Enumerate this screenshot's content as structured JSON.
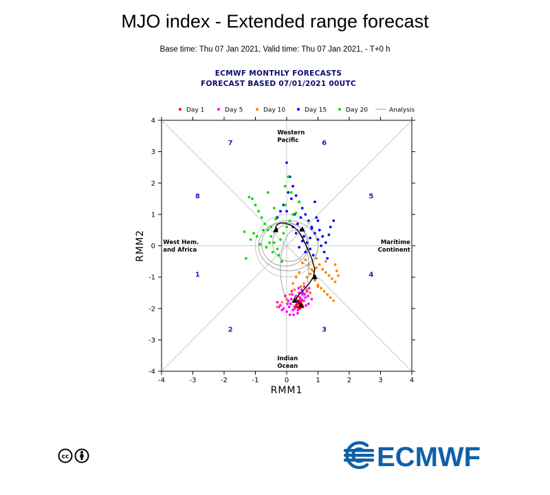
{
  "page": {
    "title": "MJO index - Extended range forecast",
    "subtitle": "Base time: Thu 07 Jan 2021, Valid time: Thu 07 Jan 2021, - T+0 h",
    "header_line1": "ECMWF MONTHLY FORECASTS",
    "header_line2": "FORECAST  BASED 07/01/2021 00UTC",
    "logo_text": "ECMWF",
    "license_icon": "cc-by-icon"
  },
  "colors": {
    "day1": "#ff0000",
    "day5": "#ff00ff",
    "day10": "#ff8000",
    "day15": "#0000ff",
    "day20": "#00dd00",
    "analysis": "#999999",
    "ensemble_mean": "#000000",
    "phase_labels": "#1a1acc",
    "logo": "#1060a8"
  },
  "chart_data": {
    "type": "scatter",
    "title": "MJO index - Extended range forecast",
    "xlabel": "RMM1",
    "ylabel": "RMM2",
    "xlim": [
      -4,
      4
    ],
    "ylim": [
      -4,
      4
    ],
    "xticks": [
      -4,
      -3,
      -2,
      -1,
      0,
      1,
      2,
      3,
      4
    ],
    "yticks": [
      -4,
      -3,
      -2,
      -1,
      0,
      1,
      2,
      3,
      4
    ],
    "legend": [
      {
        "label": "Day 1",
        "color": "#ff0000",
        "kind": "dot"
      },
      {
        "label": "Day 5",
        "color": "#ff00ff",
        "kind": "dot"
      },
      {
        "label": "Day 10",
        "color": "#ff8000",
        "kind": "dot"
      },
      {
        "label": "Day 15",
        "color": "#0000ff",
        "kind": "dot"
      },
      {
        "label": "Day 20",
        "color": "#00dd00",
        "kind": "dot"
      },
      {
        "label": "Analysis",
        "color": "#999999",
        "kind": "line"
      }
    ],
    "region_labels": [
      {
        "lines": [
          "Western",
          "Pacific"
        ],
        "x": -0.3,
        "y": 3.55,
        "anchor": "start"
      },
      {
        "lines": [
          "Indian",
          "Ocean"
        ],
        "x": -0.3,
        "y": -3.65,
        "anchor": "start"
      },
      {
        "lines": [
          "West Hem.",
          "and Africa"
        ],
        "x": -3.95,
        "y": 0.05,
        "anchor": "start"
      },
      {
        "lines": [
          "Maritime",
          "Continent"
        ],
        "x": 3.95,
        "y": 0.05,
        "anchor": "end"
      }
    ],
    "phase_labels": [
      {
        "label": "1",
        "x": -2.85,
        "y": -0.9
      },
      {
        "label": "2",
        "x": -1.8,
        "y": -2.65
      },
      {
        "label": "3",
        "x": 1.2,
        "y": -2.65
      },
      {
        "label": "4",
        "x": 2.7,
        "y": -0.9
      },
      {
        "label": "5",
        "x": 2.7,
        "y": 1.6
      },
      {
        "label": "6",
        "x": 1.2,
        "y": 3.3
      },
      {
        "label": "7",
        "x": -1.8,
        "y": 3.3
      },
      {
        "label": "8",
        "x": -2.85,
        "y": 1.6
      }
    ],
    "ensemble_mean": {
      "x": [
        0.42,
        0.3,
        0.4,
        0.55,
        0.72,
        0.85,
        0.9,
        0.8,
        0.65,
        0.5,
        0.35,
        0.15,
        -0.05,
        -0.2,
        -0.3,
        -0.35,
        -0.28
      ],
      "y": [
        -1.85,
        -1.7,
        -1.55,
        -1.4,
        -1.2,
        -1.0,
        -0.75,
        -0.4,
        -0.05,
        0.25,
        0.5,
        0.65,
        0.72,
        0.72,
        0.68,
        0.6,
        0.5
      ],
      "triangles": [
        [
          0.45,
          -1.9
        ],
        [
          0.25,
          -1.75
        ],
        [
          0.9,
          -1.0
        ],
        [
          0.5,
          0.52
        ],
        [
          -0.35,
          0.5
        ]
      ]
    },
    "analysis_loops": [
      {
        "cx": 0.05,
        "cy": 0.0,
        "rx": 0.95,
        "ry": 0.8
      },
      {
        "cx": -0.05,
        "cy": 0.05,
        "rx": 0.75,
        "ry": 0.7
      },
      {
        "cx": 0.1,
        "cy": 0.1,
        "rx": 0.55,
        "ry": 0.6
      },
      {
        "cx": 0.25,
        "cy": -0.7,
        "rx": 0.45,
        "ry": 1.2
      }
    ],
    "series": [
      {
        "name": "Day 1",
        "color": "#ff0000",
        "x": [
          0.3,
          0.35,
          0.4,
          0.45,
          0.5,
          0.42,
          0.38,
          0.33,
          0.47,
          0.52,
          0.36,
          0.44,
          0.41,
          0.39,
          0.49,
          0.34,
          0.46,
          0.43
        ],
        "y": [
          -1.9,
          -1.85,
          -1.95,
          -1.8,
          -1.9,
          -2.0,
          -1.75,
          -1.95,
          -1.85,
          -1.95,
          -1.8,
          -1.9,
          -1.8,
          -2.0,
          -1.75,
          -1.85,
          -1.95,
          -1.88
        ]
      },
      {
        "name": "Day 5",
        "color": "#ff00ff",
        "x": [
          -0.3,
          -0.2,
          -0.1,
          0.0,
          0.1,
          0.15,
          0.2,
          0.25,
          0.3,
          0.35,
          0.4,
          0.45,
          0.5,
          0.55,
          0.6,
          0.65,
          0.7,
          0.75,
          -0.25,
          -0.15,
          0.05,
          0.12,
          0.22,
          0.28,
          0.32,
          0.38,
          0.48,
          0.58,
          0.68,
          0.8,
          -0.05,
          0.18,
          0.42,
          0.52,
          0.62,
          0.08,
          0.26,
          0.36,
          0.46,
          0.56,
          0.72,
          0.02,
          0.16
        ],
        "y": [
          -1.8,
          -1.9,
          -2.0,
          -2.1,
          -2.2,
          -1.7,
          -2.05,
          -1.95,
          -1.6,
          -2.15,
          -1.5,
          -1.7,
          -1.55,
          -1.75,
          -1.65,
          -1.45,
          -1.85,
          -1.5,
          -1.95,
          -2.05,
          -1.75,
          -1.85,
          -2.2,
          -1.65,
          -1.8,
          -1.35,
          -1.4,
          -1.55,
          -1.6,
          -1.7,
          -1.6,
          -1.55,
          -1.65,
          -1.5,
          -1.9,
          -1.95,
          -2.0,
          -2.05,
          -1.75,
          -1.3,
          -1.35,
          -1.85,
          -1.45
        ]
      },
      {
        "name": "Day 10",
        "color": "#ff8000",
        "x": [
          -0.3,
          -0.15,
          0.0,
          0.1,
          0.25,
          0.35,
          0.45,
          0.55,
          0.65,
          0.75,
          0.85,
          0.95,
          1.05,
          1.15,
          1.25,
          1.35,
          1.45,
          1.55,
          0.5,
          0.6,
          0.7,
          0.8,
          0.9,
          1.0,
          1.1,
          1.2,
          1.3,
          1.4,
          1.5,
          0.4,
          0.3,
          0.2,
          0.95,
          1.25,
          1.6,
          1.65,
          1.55,
          0.65,
          0.75,
          1.0
        ],
        "y": [
          -1.95,
          -1.8,
          -1.7,
          -1.55,
          -1.4,
          -1.6,
          -1.3,
          -1.2,
          -1.0,
          -0.9,
          -0.8,
          -0.7,
          -0.6,
          -0.75,
          -0.85,
          -0.95,
          -1.05,
          -1.15,
          -0.55,
          -0.45,
          -0.6,
          -0.75,
          -1.1,
          -1.25,
          -1.35,
          -1.45,
          -1.55,
          -1.65,
          -1.75,
          -0.85,
          -1.0,
          -1.2,
          -0.4,
          -0.5,
          -0.8,
          -0.95,
          -0.6,
          -1.4,
          -1.5,
          -1.3
        ]
      },
      {
        "name": "Day 15",
        "color": "#0000ff",
        "x": [
          0.0,
          0.1,
          0.2,
          0.3,
          0.4,
          0.5,
          0.6,
          0.7,
          0.8,
          0.9,
          1.0,
          1.1,
          1.2,
          1.3,
          1.4,
          1.5,
          -0.1,
          -0.2,
          -0.3,
          0.05,
          0.15,
          0.25,
          0.35,
          0.45,
          0.55,
          0.65,
          0.75,
          0.85,
          0.95,
          1.05,
          1.15,
          1.25,
          0.0,
          0.9,
          0.45,
          0.6,
          0.3,
          0.75,
          1.35,
          0.2,
          0.5,
          0.8,
          1.0,
          0.4
        ],
        "y": [
          2.65,
          2.2,
          1.9,
          1.6,
          1.4,
          1.2,
          1.0,
          0.8,
          0.6,
          0.4,
          0.2,
          0.0,
          -0.2,
          -0.4,
          0.6,
          0.8,
          1.3,
          1.1,
          0.9,
          1.7,
          1.5,
          1.0,
          0.7,
          0.5,
          0.3,
          0.1,
          -0.1,
          -0.3,
          0.9,
          0.5,
          0.3,
          0.1,
          1.1,
          1.4,
          0.9,
          -0.2,
          0.4,
          0.25,
          0.35,
          0.6,
          0.15,
          0.55,
          0.8,
          -0.05
        ]
      },
      {
        "name": "Day 20",
        "color": "#00dd00",
        "x": [
          -1.2,
          -1.1,
          -1.0,
          -0.9,
          -0.8,
          -0.7,
          -0.6,
          -0.5,
          -0.4,
          -0.3,
          -0.2,
          -0.1,
          0.0,
          0.1,
          0.2,
          -1.3,
          -1.35,
          -0.95,
          -0.75,
          -0.55,
          -0.45,
          -0.25,
          -0.15,
          -0.05,
          0.05,
          0.15,
          -0.85,
          -0.65,
          -0.35,
          -1.15,
          -1.05,
          -0.5,
          -0.05,
          0.4,
          0.3,
          -0.4,
          -0.6
        ],
        "y": [
          1.55,
          1.5,
          1.3,
          1.1,
          0.9,
          0.7,
          0.5,
          0.3,
          0.1,
          -0.1,
          0.2,
          0.4,
          0.6,
          0.8,
          1.0,
          -0.4,
          0.45,
          0.3,
          0.5,
          0.1,
          -0.2,
          -0.3,
          -0.5,
          1.9,
          2.2,
          1.7,
          0.05,
          -0.05,
          0.85,
          0.2,
          0.4,
          0.6,
          1.3,
          1.4,
          1.05,
          1.2,
          1.7
        ]
      }
    ]
  }
}
